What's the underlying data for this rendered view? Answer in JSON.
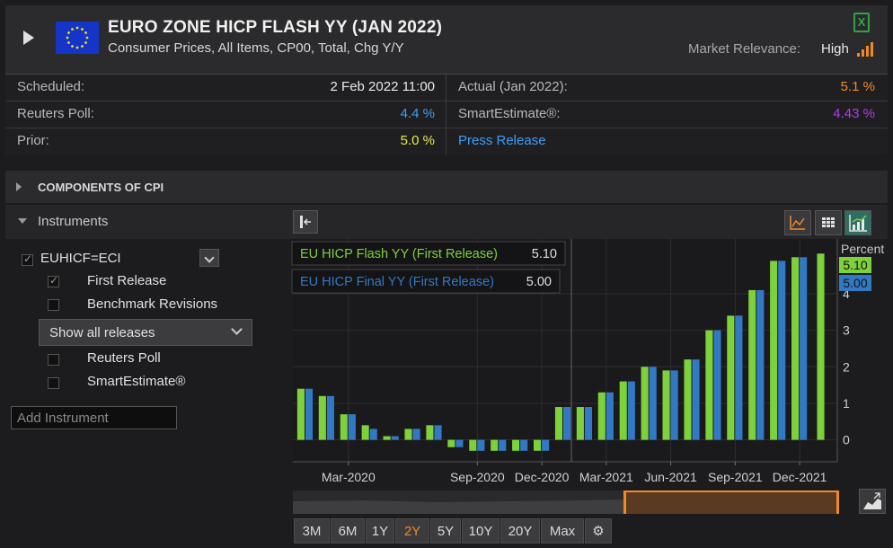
{
  "header": {
    "title": "EURO ZONE HICP FLASH YY (JAN 2022)",
    "subtitle": "Consumer Prices, All Items, CP00, Total, Chg Y/Y",
    "relevance_label": "Market Relevance:",
    "relevance_value": "High",
    "excel_glyph": "X"
  },
  "info": {
    "scheduled_label": "Scheduled:",
    "scheduled_value": "2 Feb 2022 11:00",
    "actual_label": "Actual (Jan 2022):",
    "actual_value": "5.1 %",
    "poll_label": "Reuters Poll:",
    "poll_value": "4.4 %",
    "smart_label": "SmartEstimate®:",
    "smart_value": "4.43 %",
    "prior_label": "Prior:",
    "prior_value": "5.0 %",
    "press_release": "Press Release"
  },
  "colors": {
    "actual": "#f08a24",
    "poll": "#3d9ef5",
    "smart": "#b23be8",
    "prior": "#e8e84a",
    "link": "#3d9ef5",
    "first_release": "#7dd13b",
    "final_release": "#3279c4"
  },
  "components_label": "COMPONENTS OF CPI",
  "instruments": {
    "label": "Instruments",
    "ric": "EUHICF=ECI",
    "first_release": "First Release",
    "benchmark": "Benchmark Revisions",
    "show_releases": "Show all releases",
    "reuters_poll": "Reuters Poll",
    "smart_estimate": "SmartEstimate®",
    "add_placeholder": "Add Instrument"
  },
  "ranges": [
    "3M",
    "6M",
    "1Y",
    "2Y",
    "5Y",
    "10Y",
    "20Y",
    "Max"
  ],
  "active_range": "2Y",
  "chart_data": {
    "type": "bar",
    "unit_label": "Percent",
    "x_ticks": [
      "Mar-2020",
      "Sep-2020",
      "Dec-2020",
      "Mar-2021",
      "Jun-2021",
      "Sep-2021",
      "Dec-2021"
    ],
    "y_ticks": [
      "0",
      "1",
      "2",
      "3",
      "4"
    ],
    "ylim": [
      -0.6,
      5.5
    ],
    "categories": [
      "Jan-2020",
      "Feb-2020",
      "Mar-2020",
      "Apr-2020",
      "May-2020",
      "Jun-2020",
      "Jul-2020",
      "Aug-2020",
      "Sep-2020",
      "Oct-2020",
      "Nov-2020",
      "Dec-2020",
      "Jan-2021",
      "Feb-2021",
      "Mar-2021",
      "Apr-2021",
      "May-2021",
      "Jun-2021",
      "Jul-2021",
      "Aug-2021",
      "Sep-2021",
      "Oct-2021",
      "Nov-2021",
      "Dec-2021",
      "Jan-2022"
    ],
    "series": [
      {
        "name": "EU HICP Flash YY (First Release)",
        "legend_value": "5.10",
        "values": [
          1.4,
          1.2,
          0.7,
          0.4,
          0.1,
          0.3,
          0.4,
          -0.2,
          -0.3,
          -0.3,
          -0.3,
          -0.3,
          0.9,
          0.9,
          1.3,
          1.6,
          2.0,
          1.9,
          2.2,
          3.0,
          3.4,
          4.1,
          4.9,
          5.0,
          5.1
        ]
      },
      {
        "name": "EU HICP Final YY (First Release)",
        "legend_value": "5.00",
        "values": [
          1.4,
          1.2,
          0.7,
          0.3,
          0.1,
          0.3,
          0.4,
          -0.2,
          -0.3,
          -0.3,
          -0.3,
          -0.3,
          0.9,
          0.9,
          1.3,
          1.6,
          2.0,
          1.9,
          2.2,
          3.0,
          3.4,
          4.1,
          4.9,
          5.0,
          null
        ]
      }
    ]
  }
}
